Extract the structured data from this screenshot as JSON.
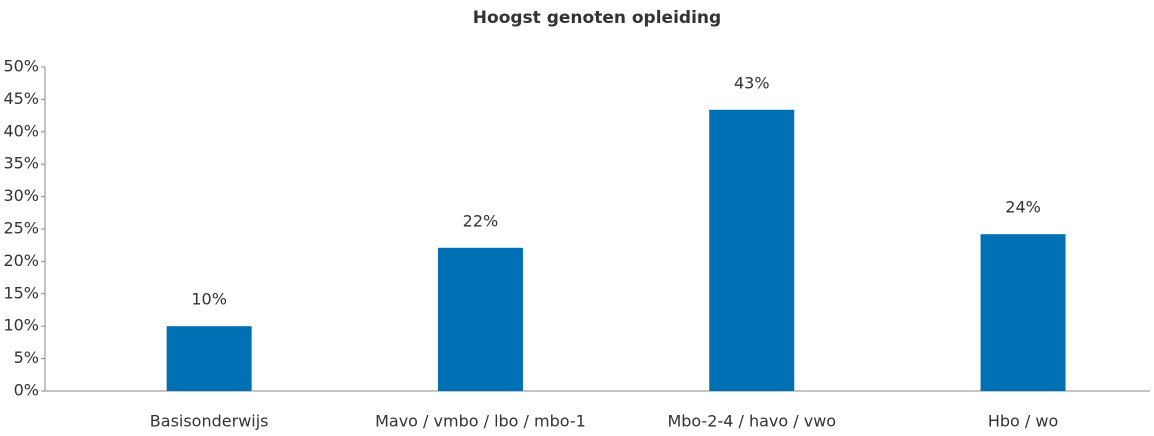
{
  "chart_data": {
    "type": "bar",
    "title": "Hoogst genoten opleiding",
    "categories": [
      "Basisonderwijs",
      "Mavo / vmbo / lbo / mbo-1",
      "Mbo-2-4 / havo / vwo",
      "Hbo / wo"
    ],
    "values": [
      10,
      22.1,
      43.4,
      24.2
    ],
    "value_labels": [
      "10%",
      "22%",
      "43%",
      "24%"
    ],
    "color": "#0070b5",
    "ylim": [
      0,
      50
    ],
    "yticks": [
      {
        "value": 0,
        "label": "0%"
      },
      {
        "value": 5,
        "label": "5%"
      },
      {
        "value": 10,
        "label": "10%"
      },
      {
        "value": 15,
        "label": "15%"
      },
      {
        "value": 20,
        "label": "20%"
      },
      {
        "value": 25,
        "label": "25%"
      },
      {
        "value": 30,
        "label": "30%"
      },
      {
        "value": 35,
        "label": "35%"
      },
      {
        "value": 40,
        "label": "40%"
      },
      {
        "value": 45,
        "label": "45%"
      },
      {
        "value": 50,
        "label": "50%"
      }
    ],
    "grid": false
  }
}
